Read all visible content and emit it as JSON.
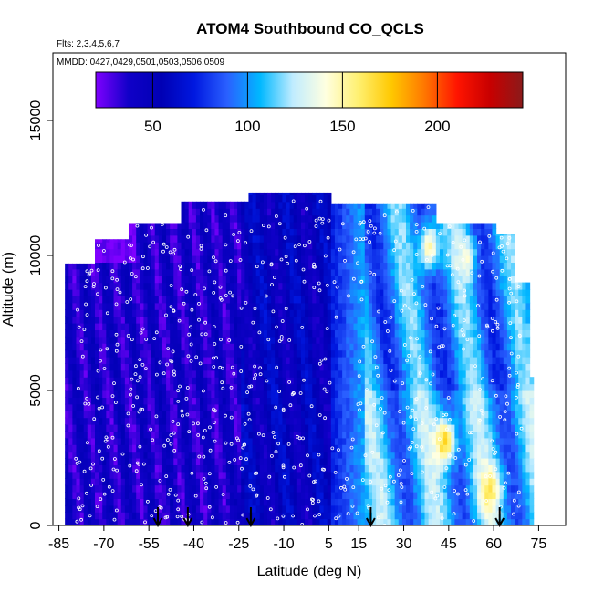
{
  "chart_data": {
    "type": "heatmap",
    "title": "ATOM4 Southbound CO_QCLS",
    "subtitle_flights": "Flts: 2,3,4,5,6,7",
    "subtitle_dates": "MMDD: 0427,0429,0501,0503,0506,0509",
    "xlabel": "Latitude (deg N)",
    "ylabel": "Altitude (m)",
    "xlim": [
      -87,
      84
    ],
    "ylim": [
      0,
      17500
    ],
    "x_ticks": [
      -85,
      -70,
      -55,
      -40,
      -25,
      -10,
      5,
      15,
      30,
      45,
      60,
      75
    ],
    "x_tick_labels": [
      "-85",
      "-70",
      "-55",
      "-40",
      "-25",
      "-10",
      "5",
      "15",
      "30",
      "45",
      "60",
      "75"
    ],
    "y_ticks": [
      0,
      5000,
      10000,
      15000
    ],
    "y_tick_labels": [
      "0",
      "5000",
      "10000",
      "15000"
    ],
    "colorbar": {
      "min": 20,
      "max": 245,
      "ticks": [
        50,
        100,
        150,
        200
      ],
      "tick_labels": [
        "50",
        "100",
        "150",
        "200"
      ],
      "colors": [
        "#7f00ff",
        "#1000c8",
        "#0000b4",
        "#0018e0",
        "#2a60ff",
        "#00b8ff",
        "#c0ecff",
        "#ffffe0",
        "#fff070",
        "#ffc800",
        "#ff7800",
        "#ff1400",
        "#c80000",
        "#8b1a1a"
      ]
    },
    "latitude_columns": [
      {
        "lat_min": -83,
        "lat_max": -73,
        "top": 9700
      },
      {
        "lat_min": -73,
        "lat_max": -62,
        "top": 10600
      },
      {
        "lat_min": -62,
        "lat_max": -45,
        "top": 11200
      },
      {
        "lat_min": -45,
        "lat_max": -22,
        "top": 12000
      },
      {
        "lat_min": -22,
        "lat_max": 5,
        "top": 12300
      },
      {
        "lat_min": 5,
        "lat_max": 40,
        "top": 11900
      },
      {
        "lat_min": 40,
        "lat_max": 60,
        "top": 11200
      },
      {
        "lat_min": 60,
        "lat_max": 66,
        "top": 10800
      },
      {
        "lat_min": 66,
        "lat_max": 71,
        "top": 9000
      },
      {
        "lat_min": 71,
        "lat_max": 73,
        "top": 5500
      }
    ],
    "hotspots": [
      {
        "lat": 43,
        "alt": 3000,
        "value": 170
      },
      {
        "lat": 58,
        "alt": 1200,
        "value": 160
      },
      {
        "lat": 38,
        "alt": 10200,
        "value": 150
      },
      {
        "lat": 50,
        "alt": 9800,
        "value": 140
      }
    ],
    "profile_arrows_lat": [
      -52,
      -42,
      -21,
      19,
      62
    ]
  }
}
